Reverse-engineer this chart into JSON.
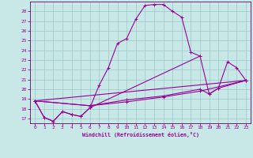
{
  "xlabel": "Windchill (Refroidissement éolien,°C)",
  "background_color": "#c8e8e8",
  "grid_color": "#9dc8c8",
  "line_color": "#990099",
  "spine_color": "#660066",
  "xlim": [
    -0.5,
    23.5
  ],
  "ylim": [
    16.5,
    29.0
  ],
  "xticks": [
    0,
    1,
    2,
    3,
    4,
    5,
    6,
    7,
    8,
    9,
    10,
    11,
    12,
    13,
    14,
    15,
    16,
    17,
    18,
    19,
    20,
    21,
    22,
    23
  ],
  "yticks": [
    17,
    18,
    19,
    20,
    21,
    22,
    23,
    24,
    25,
    26,
    27,
    28
  ],
  "c1x": [
    0,
    1,
    2,
    3,
    4,
    5,
    6,
    7,
    8,
    9,
    10,
    11,
    12,
    13,
    14,
    15,
    16,
    17,
    18
  ],
  "c1y": [
    18.8,
    17.1,
    16.7,
    17.7,
    17.4,
    17.2,
    18.1,
    20.4,
    22.2,
    24.7,
    25.2,
    27.2,
    28.6,
    28.7,
    28.7,
    28.0,
    27.4,
    23.8,
    23.4
  ],
  "c2x": [
    0,
    1,
    2,
    3,
    4,
    5,
    6,
    18,
    19,
    20,
    21,
    22,
    23
  ],
  "c2y": [
    18.8,
    17.1,
    16.7,
    17.7,
    17.4,
    17.2,
    18.1,
    23.4,
    19.5,
    20.1,
    22.8,
    22.2,
    20.9
  ],
  "c3x": [
    0,
    23
  ],
  "c3y": [
    18.8,
    20.9
  ],
  "c4x": [
    0,
    6,
    10,
    14,
    18,
    23
  ],
  "c4y": [
    18.8,
    18.3,
    18.7,
    19.2,
    19.8,
    20.9
  ],
  "c5x": [
    0,
    6,
    10,
    14,
    18,
    19,
    20,
    23
  ],
  "c5y": [
    18.8,
    18.3,
    18.9,
    19.3,
    20.0,
    19.5,
    20.1,
    20.9
  ]
}
